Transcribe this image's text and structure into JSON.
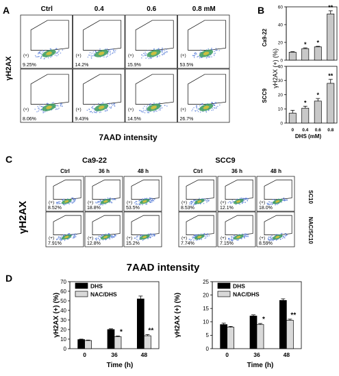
{
  "panels": {
    "A": "A",
    "B": "B",
    "C": "C",
    "D": "D"
  },
  "panel_a": {
    "column_headers": [
      "Ctrl",
      "0.4",
      "0.6",
      "0.8 mM"
    ],
    "y_label": "γH2AX",
    "x_label": "7AAD intensity",
    "gate_label": "(+)",
    "rows": [
      {
        "percents": [
          "9.25%",
          "14.2%",
          "15.9%",
          "53.5%"
        ]
      },
      {
        "percents": [
          "8.06%",
          "9.43%",
          "14.5%",
          "26.7%"
        ]
      }
    ]
  },
  "panel_c": {
    "group_titles": [
      "Ca9-22",
      "SCC9"
    ],
    "column_headers": [
      "Ctrl",
      "36 h",
      "48 h",
      "Ctrl",
      "36 h",
      "48 h"
    ],
    "row_labels": [
      "SC10",
      "NAC/SC10"
    ],
    "y_label": "γH2AX",
    "x_label": "7AAD intensity",
    "gate_label": "(+)",
    "rows": [
      {
        "percents": [
          "8.52%",
          "18.8%",
          "53.5%",
          "8.53%",
          "12.1%",
          "18.0%"
        ]
      },
      {
        "percents": [
          "7.91%",
          "12.8%",
          "15.2%",
          "7.74%",
          "7.15%",
          "8.59%"
        ]
      }
    ]
  },
  "chart_data": [
    {
      "type": "bar",
      "panel": "B",
      "row_label": "Ca9-22",
      "categories": [
        "0",
        "0.4",
        "0.6",
        "0.8"
      ],
      "values": [
        9,
        13,
        15,
        52
      ],
      "errors": [
        0.6,
        0.8,
        0.6,
        3.5
      ],
      "significance": [
        "",
        "*",
        "*",
        "**"
      ],
      "ylim": [
        0,
        60
      ],
      "yticks": [
        0,
        20,
        40,
        60
      ]
    },
    {
      "type": "bar",
      "panel": "B",
      "row_label": "SCC9",
      "categories": [
        "0",
        "0.4",
        "0.6",
        "0.8"
      ],
      "values": [
        7,
        10.5,
        15.5,
        28
      ],
      "errors": [
        2,
        1.4,
        1.8,
        2.8
      ],
      "significance": [
        "",
        "*",
        "*",
        "**"
      ],
      "ylim": [
        0,
        40
      ],
      "yticks": [
        0,
        10,
        20,
        30,
        40
      ]
    },
    {
      "type": "bar",
      "panel": "D",
      "categories": [
        "0",
        "36",
        "48"
      ],
      "series": [
        {
          "name": "DHS",
          "color": "#000000",
          "values": [
            9.5,
            20,
            52
          ],
          "errors": [
            0.5,
            0.8,
            3
          ]
        },
        {
          "name": "NAC/DHS",
          "color": "#d9d9d9",
          "values": [
            8.5,
            12.5,
            13.5
          ],
          "errors": [
            0.5,
            0.8,
            1.2
          ]
        }
      ],
      "significance": [
        "",
        "*",
        "**"
      ],
      "xlabel": "Time (h)",
      "ylabel": "γH2AX (+) (%)",
      "ylim": [
        0,
        70
      ],
      "yticks": [
        0,
        10,
        20,
        30,
        40,
        50,
        60,
        70
      ],
      "legend": "top-left"
    },
    {
      "type": "bar",
      "panel": "D",
      "categories": [
        "0",
        "36",
        "48"
      ],
      "series": [
        {
          "name": "DHS",
          "color": "#000000",
          "values": [
            9,
            12.2,
            18
          ],
          "errors": [
            0.5,
            0.4,
            0.6
          ]
        },
        {
          "name": "NAC/DHS",
          "color": "#d9d9d9",
          "values": [
            8,
            9,
            10.6
          ],
          "errors": [
            0.3,
            0.4,
            0.4
          ]
        }
      ],
      "significance": [
        "",
        "*",
        "**"
      ],
      "xlabel": "Time (h)",
      "ylabel": "γH2AX (+) (%)",
      "ylim": [
        0,
        25
      ],
      "yticks": [
        0,
        5,
        10,
        15,
        20,
        25
      ],
      "legend": "top-left"
    }
  ],
  "panel_b": {
    "ylabel": "γH2AX (+) (%)",
    "xlabel": "DHS (mM)"
  }
}
